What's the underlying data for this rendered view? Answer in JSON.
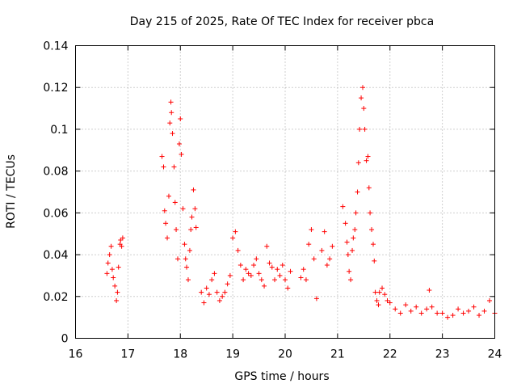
{
  "chart_data": {
    "type": "scatter",
    "title": "Day 215 of 2025, Rate Of TEC Index for receiver pbca",
    "xlabel": "GPS time / hours",
    "ylabel": "ROTI / TECUs",
    "xlim": [
      16,
      24
    ],
    "ylim": [
      0,
      0.14
    ],
    "xticks": [
      "16",
      "17",
      "18",
      "19",
      "20",
      "21",
      "22",
      "23",
      "24"
    ],
    "yticks": [
      "0",
      "0.02",
      "0.04",
      "0.06",
      "0.08",
      "0.1",
      "0.12",
      "0.14"
    ],
    "grid": true,
    "marker": "+",
    "color": "#ff0000",
    "series": [
      {
        "name": "ROTI",
        "x": [
          16.6,
          16.62,
          16.65,
          16.68,
          16.7,
          16.72,
          16.75,
          16.78,
          16.8,
          16.82,
          16.85,
          16.86,
          16.88,
          16.9,
          17.65,
          17.68,
          17.7,
          17.72,
          17.75,
          17.78,
          17.8,
          17.82,
          17.83,
          17.85,
          17.88,
          17.9,
          17.92,
          17.95,
          17.98,
          18.0,
          18.02,
          18.05,
          18.08,
          18.1,
          18.12,
          18.15,
          18.18,
          18.2,
          18.22,
          18.25,
          18.28,
          18.3,
          18.4,
          18.45,
          18.5,
          18.55,
          18.6,
          18.65,
          18.7,
          18.75,
          18.8,
          18.85,
          18.9,
          18.95,
          19.0,
          19.05,
          19.1,
          19.15,
          19.2,
          19.25,
          19.3,
          19.35,
          19.4,
          19.45,
          19.5,
          19.55,
          19.6,
          19.65,
          19.7,
          19.75,
          19.8,
          19.85,
          19.9,
          19.95,
          20.0,
          20.05,
          20.1,
          20.3,
          20.35,
          20.4,
          20.45,
          20.5,
          20.55,
          20.6,
          20.7,
          20.75,
          20.8,
          20.85,
          20.9,
          21.1,
          21.15,
          21.18,
          21.2,
          21.22,
          21.25,
          21.28,
          21.3,
          21.33,
          21.35,
          21.38,
          21.4,
          21.42,
          21.45,
          21.48,
          21.5,
          21.52,
          21.55,
          21.58,
          21.6,
          21.62,
          21.65,
          21.68,
          21.7,
          21.72,
          21.75,
          21.78,
          21.8,
          21.85,
          21.9,
          21.95,
          22.0,
          22.1,
          22.2,
          22.3,
          22.4,
          22.5,
          22.6,
          22.7,
          22.75,
          22.8,
          22.9,
          23.0,
          23.1,
          23.2,
          23.3,
          23.4,
          23.5,
          23.6,
          23.7,
          23.8,
          23.9,
          24.0
        ],
        "y": [
          0.031,
          0.036,
          0.04,
          0.044,
          0.033,
          0.029,
          0.025,
          0.018,
          0.022,
          0.034,
          0.045,
          0.047,
          0.044,
          0.048,
          0.087,
          0.082,
          0.061,
          0.055,
          0.048,
          0.068,
          0.103,
          0.113,
          0.108,
          0.098,
          0.082,
          0.065,
          0.052,
          0.038,
          0.093,
          0.105,
          0.088,
          0.062,
          0.045,
          0.038,
          0.034,
          0.028,
          0.042,
          0.052,
          0.058,
          0.071,
          0.062,
          0.053,
          0.022,
          0.017,
          0.024,
          0.021,
          0.028,
          0.031,
          0.022,
          0.018,
          0.02,
          0.022,
          0.026,
          0.03,
          0.048,
          0.051,
          0.042,
          0.035,
          0.028,
          0.033,
          0.031,
          0.03,
          0.035,
          0.038,
          0.031,
          0.028,
          0.025,
          0.044,
          0.036,
          0.034,
          0.028,
          0.033,
          0.03,
          0.035,
          0.028,
          0.024,
          0.032,
          0.029,
          0.033,
          0.028,
          0.045,
          0.052,
          0.038,
          0.019,
          0.042,
          0.051,
          0.035,
          0.038,
          0.044,
          0.063,
          0.055,
          0.046,
          0.04,
          0.032,
          0.028,
          0.042,
          0.048,
          0.052,
          0.06,
          0.07,
          0.084,
          0.1,
          0.115,
          0.12,
          0.11,
          0.1,
          0.085,
          0.087,
          0.072,
          0.06,
          0.052,
          0.045,
          0.037,
          0.022,
          0.018,
          0.016,
          0.022,
          0.024,
          0.021,
          0.018,
          0.017,
          0.014,
          0.012,
          0.016,
          0.013,
          0.015,
          0.012,
          0.014,
          0.023,
          0.015,
          0.012,
          0.012,
          0.01,
          0.011,
          0.014,
          0.012,
          0.013,
          0.015,
          0.011,
          0.013,
          0.018,
          0.012
        ]
      }
    ]
  }
}
